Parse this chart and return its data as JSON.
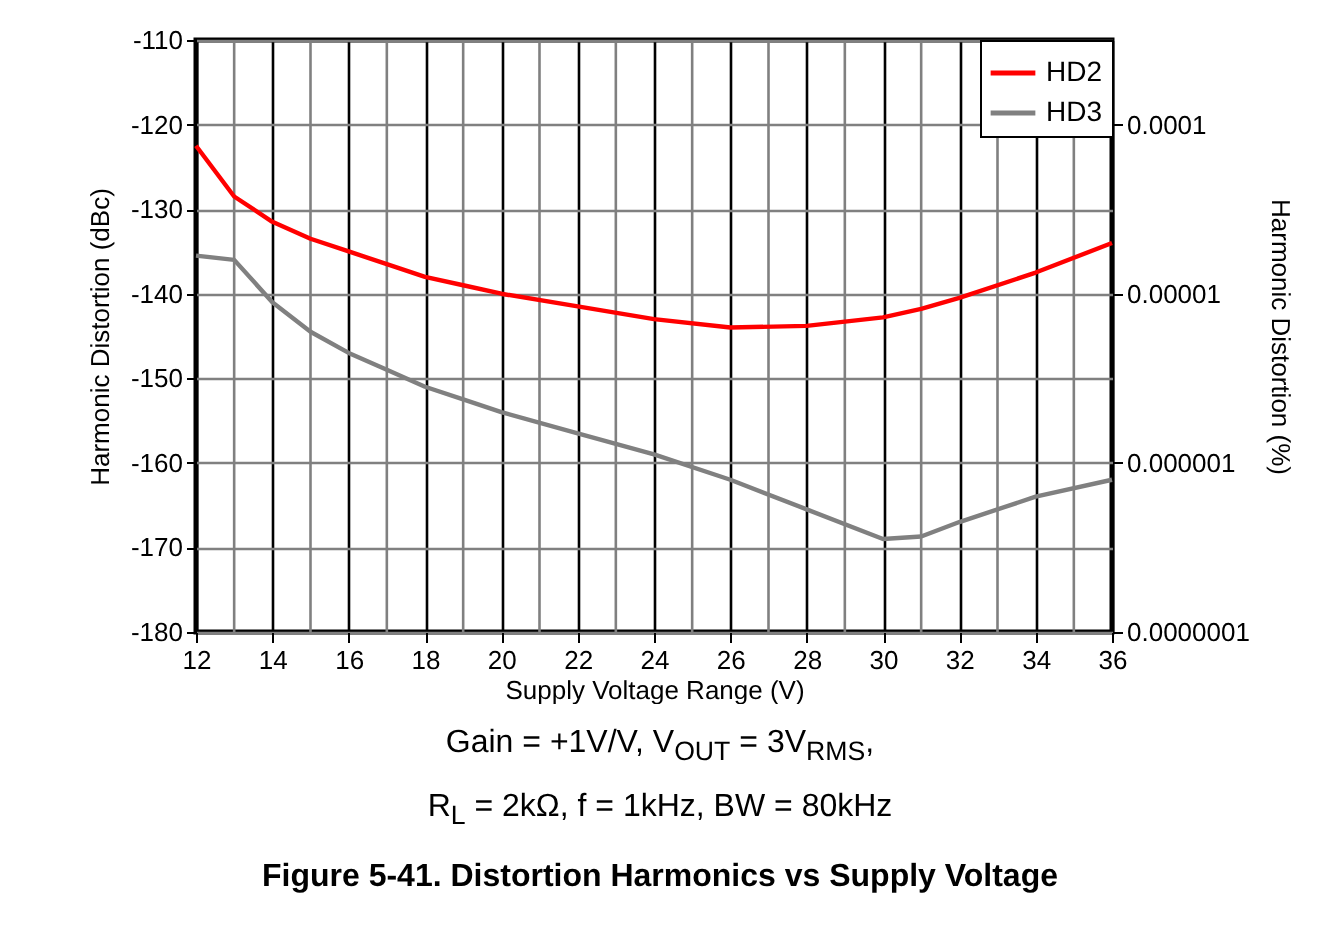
{
  "chart_data": {
    "type": "line",
    "title": "Figure 5-41. Distortion Harmonics vs Supply Voltage",
    "xlabel": "Supply Voltage Range (V)",
    "ylabel": "Harmonic Distortion (dBc)",
    "y2label": "Harmonic Distortion (%)",
    "annotations": [
      "Gain = +1V/V, V$_{OUT}$ = 3V$_{RMS}$,",
      "R$_{L}$ = 2kΩ, f = 1kHz, BW = 80kHz"
    ],
    "x": [
      12,
      13,
      14,
      15,
      16,
      17,
      18,
      19,
      20,
      22,
      24,
      26,
      28,
      30,
      31,
      32,
      34,
      36
    ],
    "series": [
      {
        "name": "HD2",
        "color": "#ff0000",
        "values": [
          -122.5,
          -128.5,
          -131.5,
          -133.5,
          -135,
          -136.5,
          -138,
          -139,
          -140,
          -141.5,
          -143,
          -144,
          -143.8,
          -142.8,
          -141.8,
          -140.5,
          -137.5,
          -134
        ]
      },
      {
        "name": "HD3",
        "color": "#808080",
        "values": [
          -135.5,
          -136,
          -141,
          -144.5,
          -147,
          -149,
          -151,
          -152.5,
          -154,
          -156.5,
          -159,
          -162,
          -165.5,
          -169,
          -168.7,
          -167,
          -164,
          -162
        ]
      }
    ],
    "xlim": [
      12,
      36
    ],
    "xticks": [
      12,
      14,
      16,
      18,
      20,
      22,
      24,
      26,
      28,
      30,
      32,
      34,
      36
    ],
    "ylim": [
      -180,
      -110
    ],
    "yticks": [
      -180,
      -170,
      -160,
      -150,
      -140,
      -130,
      -120,
      -110
    ],
    "y2lim": [
      1e-07,
      0.000316
    ],
    "y2ticks": [
      {
        "value": 1e-07,
        "label": "0.0000001"
      },
      {
        "value": 1e-06,
        "label": "0.000001"
      },
      {
        "value": 1e-05,
        "label": "0.00001"
      },
      {
        "value": 0.0001,
        "label": "0.0001"
      }
    ],
    "log": "y2",
    "grid": true,
    "legend": "top right",
    "marker": "none",
    "line_style": "solid"
  }
}
